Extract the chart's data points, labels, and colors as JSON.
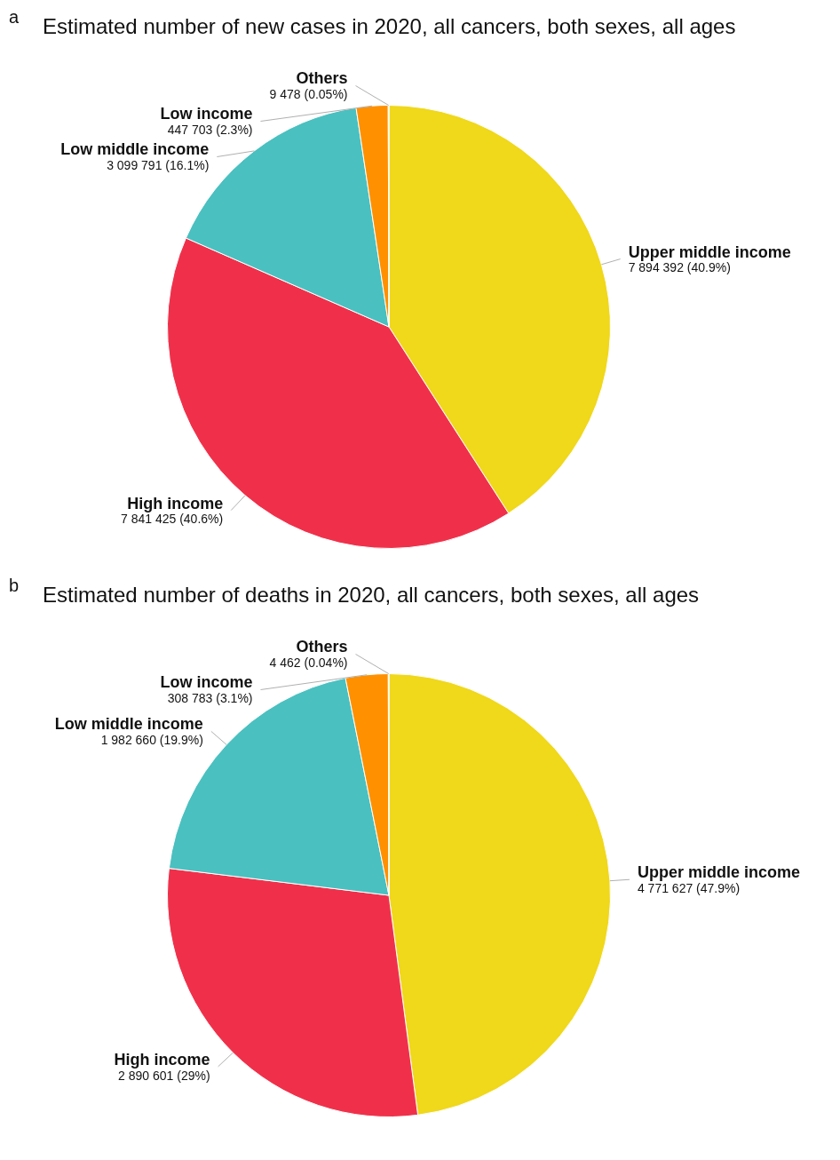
{
  "chart_data": [
    {
      "type": "pie",
      "title": "Estimated number of new cases in 2020, all cancers, both sexes, all ages",
      "annotations": [
        "a"
      ],
      "categories": [
        "Upper middle income",
        "High income",
        "Low middle income",
        "Low income",
        "Others"
      ],
      "values": [
        7894392,
        7841425,
        3099791,
        447703,
        9478
      ],
      "value_labels": [
        "7 894 392 (40.9%)",
        "7 841 425 (40.6%)",
        "3 099 791 (16.1%)",
        "447 703 (2.3%)",
        "9 478 (0.05%)"
      ],
      "colors": [
        "#f0d81a",
        "#f0304a",
        "#4ac0c0",
        "#ff9000",
        "#d8d8d8"
      ]
    },
    {
      "type": "pie",
      "title": "Estimated number of deaths in 2020, all cancers, both sexes, all ages",
      "annotations": [
        "b"
      ],
      "categories": [
        "Upper middle income",
        "High income",
        "Low middle income",
        "Low income",
        "Others"
      ],
      "values": [
        4771627,
        2890601,
        1982660,
        308783,
        4462
      ],
      "value_labels": [
        "4 771 627 (47.9%)",
        "2 890 601 (29%)",
        "1 982 660 (19.9%)",
        "308 783 (3.1%)",
        "4 462 (0.04%)"
      ],
      "colors": [
        "#f0d81a",
        "#f0304a",
        "#4ac0c0",
        "#ff9000",
        "#d8d8d8"
      ]
    }
  ]
}
